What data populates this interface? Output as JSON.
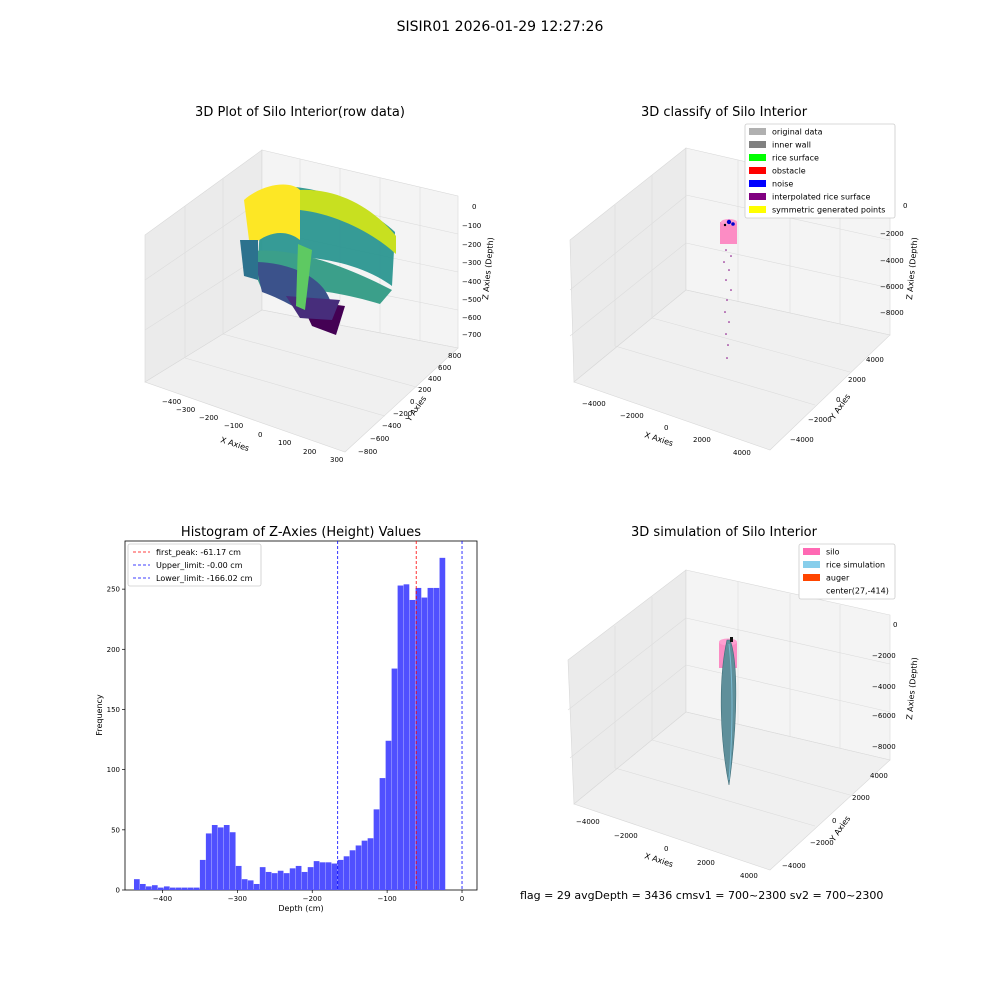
{
  "figure": {
    "suptitle": "SISIR01 2026-01-29 12:27:26",
    "footer": "flag = 29  avgDepth = 3436 cmsv1 = 700~2300  sv2 = 700~2300"
  },
  "chart_data": [
    {
      "type": "scatter3d",
      "title": "3D Plot of Silo Interior(row data)",
      "xlabel": "X Axies",
      "ylabel": "Y Axies",
      "zlabel": "Z Axies (Depth)",
      "xticks": [
        "−400",
        "−300",
        "−200",
        "−100",
        "0",
        "100",
        "200",
        "300"
      ],
      "yticks": [
        "−800",
        "−600",
        "−400",
        "−200",
        "0",
        "200",
        "400",
        "600",
        "800"
      ],
      "zticks": [
        "0",
        "−100",
        "−200",
        "−300",
        "−400",
        "−500",
        "−600",
        "−700"
      ],
      "colormap": [
        "#440154",
        "#3b528b",
        "#21918c",
        "#5ec962",
        "#fde725"
      ]
    },
    {
      "type": "scatter3d",
      "title": "3D classify of Silo Interior",
      "xlabel": "X Axies",
      "ylabel": "Y Axies",
      "zlabel": "Z Axies (Depth)",
      "xticks": [
        "−4000",
        "−2000",
        "0",
        "2000",
        "4000"
      ],
      "yticks": [
        "−4000",
        "−2000",
        "0",
        "2000",
        "4000"
      ],
      "zticks": [
        "0",
        "−2000",
        "−4000",
        "−6000",
        "−8000"
      ],
      "legend_position": "top-right",
      "legend": [
        {
          "label": "original data",
          "color": "#b0b0b0"
        },
        {
          "label": "inner wall",
          "color": "#808080"
        },
        {
          "label": "rice surface",
          "color": "#00ff00"
        },
        {
          "label": "obstacle",
          "color": "#ff0000"
        },
        {
          "label": "noise",
          "color": "#0000ff"
        },
        {
          "label": "interpolated rice surface",
          "color": "#800080"
        },
        {
          "label": "symmetric generated points",
          "color": "#ffff00"
        }
      ]
    },
    {
      "type": "bar",
      "title": "Histogram of Z-Axies (Height) Values",
      "xlabel": "Depth (cm)",
      "ylabel": "Frequency",
      "xlim": [
        -450,
        20
      ],
      "ylim": [
        0,
        290
      ],
      "xticks": [
        -400,
        -300,
        -200,
        -100,
        0
      ],
      "xtick_labels": [
        "−400",
        "−300",
        "−200",
        "−100",
        "0"
      ],
      "yticks": [
        0,
        50,
        100,
        150,
        200,
        250
      ],
      "bin_width": 8,
      "bar_color": "#5050ff",
      "bins": [
        {
          "start": -438,
          "value": 9
        },
        {
          "start": -430,
          "value": 5
        },
        {
          "start": -422,
          "value": 3
        },
        {
          "start": -414,
          "value": 4
        },
        {
          "start": -406,
          "value": 2
        },
        {
          "start": -398,
          "value": 3
        },
        {
          "start": -390,
          "value": 2
        },
        {
          "start": -382,
          "value": 2
        },
        {
          "start": -374,
          "value": 2
        },
        {
          "start": -366,
          "value": 2
        },
        {
          "start": -358,
          "value": 2
        },
        {
          "start": -350,
          "value": 25
        },
        {
          "start": -342,
          "value": 47
        },
        {
          "start": -334,
          "value": 54
        },
        {
          "start": -326,
          "value": 52
        },
        {
          "start": -318,
          "value": 54
        },
        {
          "start": -310,
          "value": 48
        },
        {
          "start": -302,
          "value": 20
        },
        {
          "start": -294,
          "value": 9
        },
        {
          "start": -286,
          "value": 8
        },
        {
          "start": -278,
          "value": 5
        },
        {
          "start": -270,
          "value": 19
        },
        {
          "start": -262,
          "value": 15
        },
        {
          "start": -254,
          "value": 14
        },
        {
          "start": -246,
          "value": 16
        },
        {
          "start": -238,
          "value": 14
        },
        {
          "start": -230,
          "value": 18
        },
        {
          "start": -222,
          "value": 20
        },
        {
          "start": -214,
          "value": 15
        },
        {
          "start": -206,
          "value": 19
        },
        {
          "start": -198,
          "value": 24
        },
        {
          "start": -190,
          "value": 23
        },
        {
          "start": -182,
          "value": 23
        },
        {
          "start": -174,
          "value": 22
        },
        {
          "start": -166,
          "value": 25
        },
        {
          "start": -158,
          "value": 28
        },
        {
          "start": -150,
          "value": 33
        },
        {
          "start": -142,
          "value": 37
        },
        {
          "start": -134,
          "value": 41
        },
        {
          "start": -126,
          "value": 43
        },
        {
          "start": -118,
          "value": 67
        },
        {
          "start": -110,
          "value": 93
        },
        {
          "start": -102,
          "value": 124
        },
        {
          "start": -94,
          "value": 184
        },
        {
          "start": -86,
          "value": 253
        },
        {
          "start": -78,
          "value": 254
        },
        {
          "start": -70,
          "value": 241
        },
        {
          "start": -62,
          "value": 251
        },
        {
          "start": -54,
          "value": 243
        },
        {
          "start": -46,
          "value": 251
        },
        {
          "start": -38,
          "value": 251
        },
        {
          "start": -30,
          "value": 276
        }
      ],
      "vlines": [
        {
          "label": "first_peak: -61.17 cm",
          "x": -61.17,
          "color": "#ff0000"
        },
        {
          "label": "Upper_limit: -0.00 cm",
          "x": 0,
          "color": "#0000ff"
        },
        {
          "label": "Lower_limit: -166.02 cm",
          "x": -166.02,
          "color": "#0000ff"
        }
      ],
      "legend_position": "top-left"
    },
    {
      "type": "surface3d",
      "title": "3D simulation of Silo Interior",
      "xlabel": "X Axies",
      "ylabel": "Y Axies",
      "zlabel": "Z Axies (Depth)",
      "xticks": [
        "−4000",
        "−2000",
        "0",
        "2000",
        "4000"
      ],
      "yticks": [
        "−4000",
        "−2000",
        "0",
        "2000",
        "4000"
      ],
      "zticks": [
        "0",
        "−2000",
        "−4000",
        "−6000",
        "−8000"
      ],
      "legend_position": "top-right",
      "legend": [
        {
          "label": "silo",
          "color": "#ff69b4"
        },
        {
          "label": "rice simulation",
          "color": "#87ceeb"
        },
        {
          "label": "auger",
          "color": "#ff4500"
        },
        {
          "label": "center(27,-414)",
          "color": ""
        }
      ]
    }
  ]
}
